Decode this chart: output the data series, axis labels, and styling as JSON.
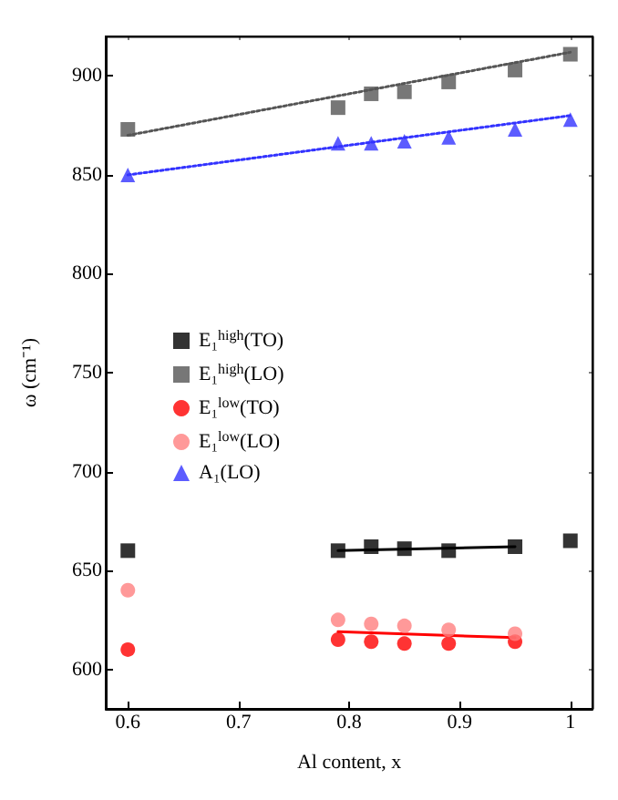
{
  "chart_data": {
    "type": "scatter",
    "xlabel": "Al content, x",
    "ylabel": "ω (cm⁻¹)",
    "xlim": [
      0.58,
      1.02
    ],
    "xticks": [
      0.6,
      0.7,
      0.8,
      0.9,
      1.0
    ],
    "ylim": [
      580,
      920
    ],
    "yticks": [
      600,
      650,
      700,
      750,
      800,
      850,
      900
    ],
    "legend": "left",
    "grid": false,
    "series": [
      {
        "name": "E₁$^{high}$(TO)",
        "color": "#000000",
        "marker": "square",
        "x": [
          0.6,
          0.79,
          0.82,
          0.85,
          0.89,
          0.95,
          1.0
        ],
        "values": [
          660,
          660,
          662,
          661,
          660,
          662,
          665
        ]
      },
      {
        "name": "E₁$^{high}$(LO)",
        "color": "#555555",
        "marker": "square",
        "x": [
          0.6,
          0.79,
          0.82,
          0.85,
          0.89,
          0.95,
          1.0
        ],
        "values": [
          873,
          884,
          891,
          892,
          897,
          903,
          911
        ]
      },
      {
        "name": "E₁$^{low}$(TO)",
        "color": "#ff0000",
        "marker": "circle",
        "x": [
          0.6,
          0.79,
          0.82,
          0.85,
          0.89,
          0.95
        ],
        "values": [
          610,
          615,
          614,
          613,
          613,
          614
        ]
      },
      {
        "name": "E₁$^{low}$(LO)",
        "color": "#ff8080",
        "marker": "circle",
        "x": [
          0.6,
          0.79,
          0.82,
          0.85,
          0.89,
          0.95
        ],
        "values": [
          640,
          625,
          623,
          622,
          620,
          618
        ]
      },
      {
        "name": "A₁(LO)",
        "color": "#3333ff",
        "marker": "triangle",
        "x": [
          0.6,
          0.79,
          0.82,
          0.85,
          0.89,
          0.95,
          1.0
        ],
        "values": [
          850,
          866,
          866,
          867,
          869,
          873,
          878
        ]
      },
      {
        "type": "line",
        "color": "#555555",
        "line_style": "dotted",
        "marker": "none",
        "x": [
          0.6,
          1.0
        ],
        "values": [
          870,
          912
        ]
      },
      {
        "type": "line",
        "color": "#3333ff",
        "line_style": "dotted",
        "marker": "none",
        "x": [
          0.6,
          1.0
        ],
        "values": [
          850,
          880
        ]
      },
      {
        "type": "line",
        "color": "#000000",
        "line_style": "solid",
        "marker": "none",
        "x": [
          0.79,
          0.95
        ],
        "values": [
          660,
          662
        ]
      },
      {
        "type": "line",
        "color": "#ff0000",
        "line_style": "solid",
        "marker": "none",
        "x": [
          0.79,
          0.95
        ],
        "values": [
          619,
          616
        ]
      }
    ]
  }
}
